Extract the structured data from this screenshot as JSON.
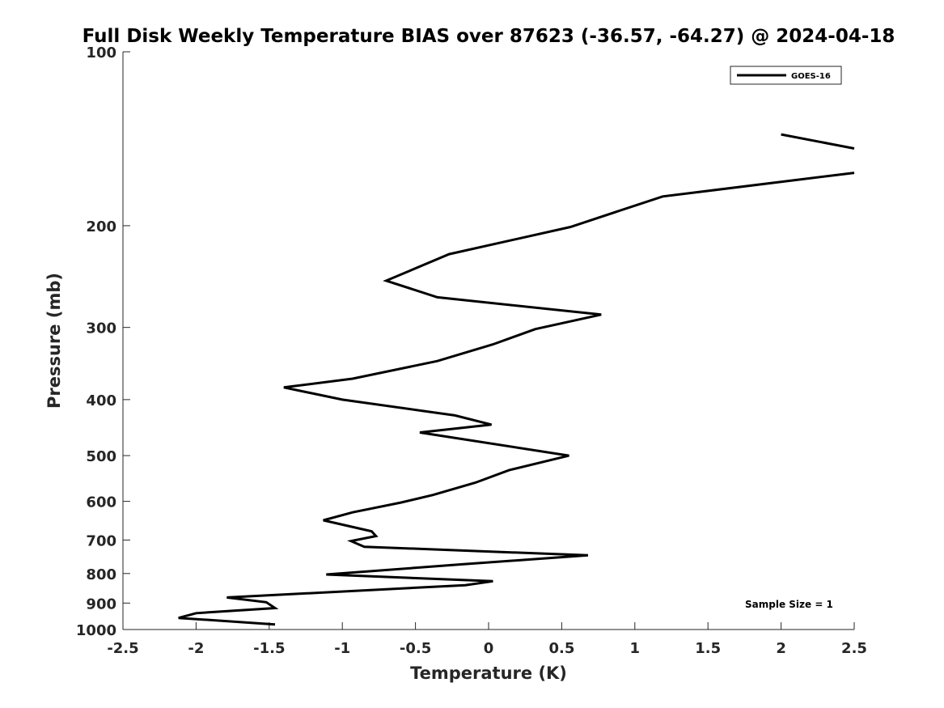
{
  "chart_data": {
    "type": "line",
    "title": "Full Disk Weekly Temperature BIAS over 87623 (-36.57, -64.27) @ 2024-04-18",
    "xlabel": "Temperature (K)",
    "ylabel": "Pressure (mb)",
    "xlim": [
      -2.5,
      2.5
    ],
    "ylim": [
      1000,
      100
    ],
    "y_scale": "log",
    "y_reversed": true,
    "grid": false,
    "legend_position": "top-right",
    "x_ticks": [
      "-2.5",
      "-2",
      "-1.5",
      "-1",
      "-0.5",
      "0",
      "0.5",
      "1",
      "1.5",
      "2",
      "2.5"
    ],
    "x_tick_values": [
      -2.5,
      -2,
      -1.5,
      -1,
      -0.5,
      0,
      0.5,
      1,
      1.5,
      2,
      2.5
    ],
    "y_ticks": [
      "100",
      "200",
      "300",
      "400",
      "500",
      "600",
      "700",
      "800",
      "900",
      "1000"
    ],
    "y_tick_values": [
      100,
      200,
      300,
      400,
      500,
      600,
      700,
      800,
      900,
      1000
    ],
    "annotation": "Sample Size = 1",
    "series": [
      {
        "name": "GOES-16",
        "color": "#000000",
        "segments": [
          [
            [
              2.0,
              139
            ],
            [
              2.5,
              147
            ]
          ],
          [
            [
              2.5,
              162
            ],
            [
              1.19,
              178
            ],
            [
              0.56,
              201
            ],
            [
              -0.27,
              224
            ],
            [
              -0.7,
              249
            ],
            [
              -0.35,
              266
            ],
            [
              0.77,
              285
            ],
            [
              0.32,
              302
            ],
            [
              0.03,
              321
            ],
            [
              -0.35,
              343
            ],
            [
              -0.93,
              368
            ],
            [
              -1.4,
              381
            ],
            [
              -1.0,
              400
            ],
            [
              -0.23,
              426
            ],
            [
              0.02,
              442
            ],
            [
              -0.47,
              456
            ],
            [
              0.55,
              500
            ],
            [
              0.14,
              530
            ],
            [
              -0.09,
              557
            ],
            [
              -0.38,
              585
            ],
            [
              -0.6,
              603
            ],
            [
              -0.93,
              627
            ],
            [
              -1.13,
              647
            ],
            [
              -0.8,
              676
            ],
            [
              -0.77,
              689
            ],
            [
              -0.94,
              703
            ],
            [
              -0.85,
              719
            ],
            [
              0.68,
              744
            ],
            [
              -0.18,
              771
            ],
            [
              -1.11,
              803
            ],
            [
              0.03,
              825
            ],
            [
              -0.16,
              838
            ],
            [
              -1.79,
              880
            ],
            [
              -1.52,
              897
            ],
            [
              -1.46,
              918
            ],
            [
              -2.0,
              937
            ],
            [
              -2.12,
              955
            ],
            [
              -1.46,
              980
            ]
          ]
        ]
      }
    ]
  }
}
